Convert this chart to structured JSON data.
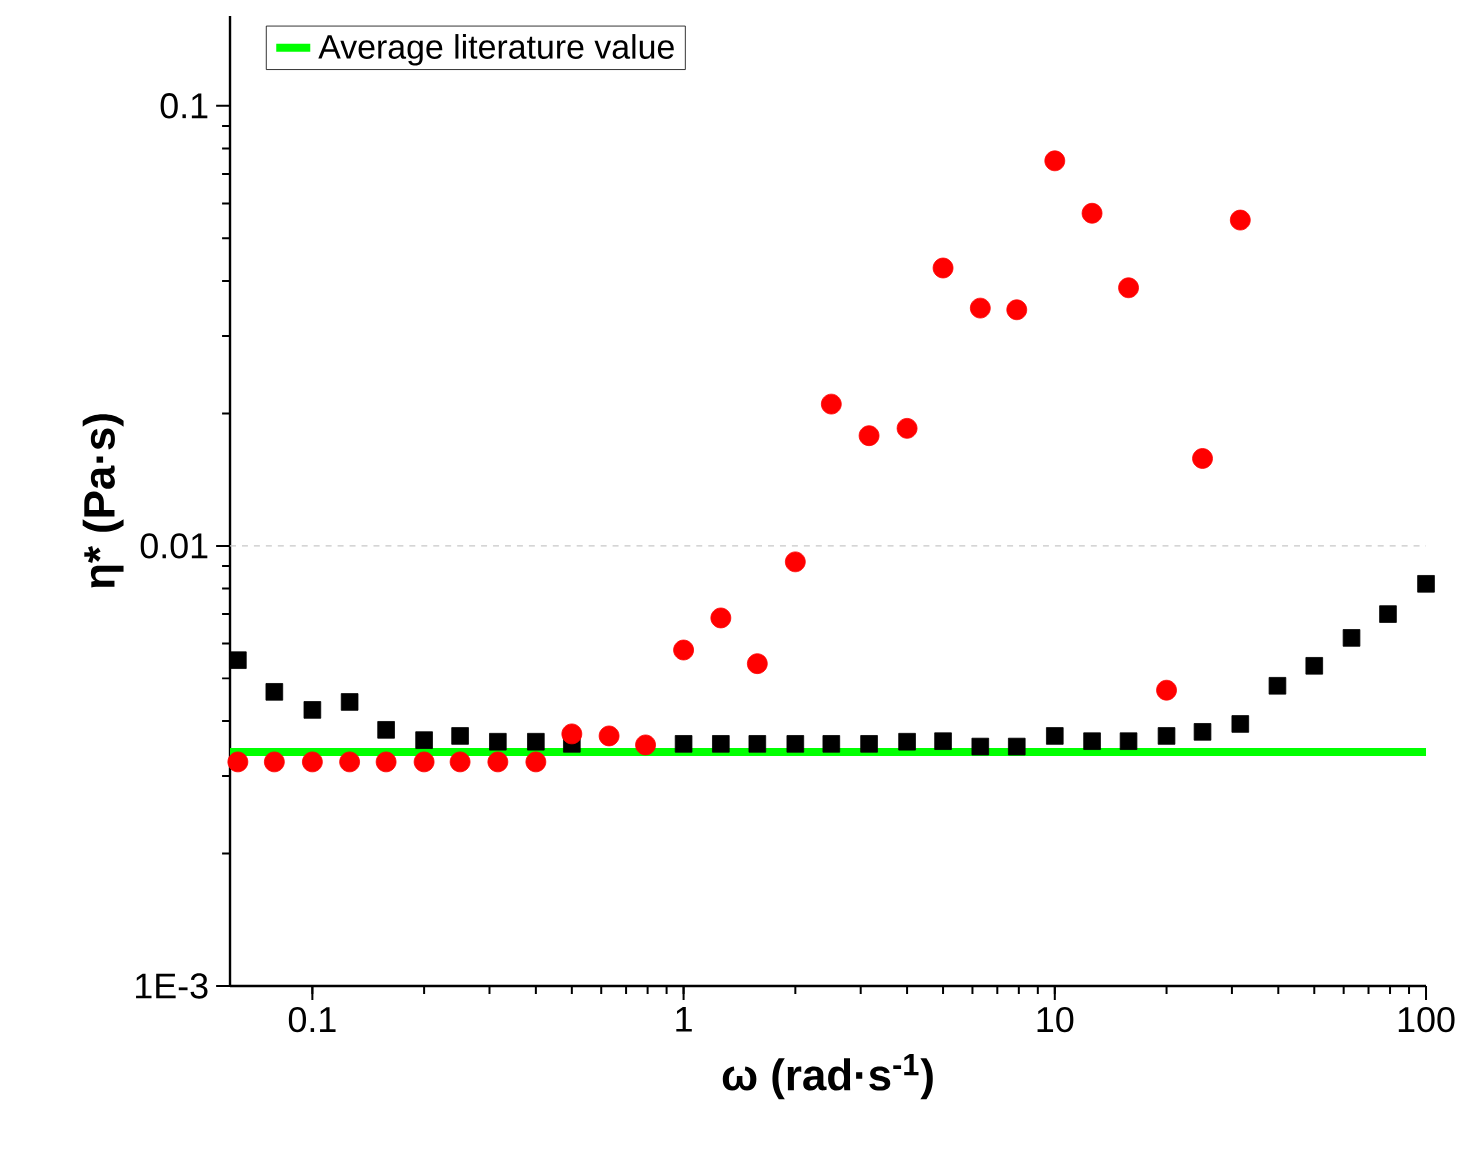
{
  "chart_data": {
    "type": "scatter",
    "xlabel": "ω (rad·s$^{-1}$)",
    "ylabel": "η* (Pa·s)",
    "log": "xy",
    "xlim": [
      0.06,
      100
    ],
    "ylim": [
      0.001,
      0.16
    ],
    "xticks": [
      0.1,
      1,
      10,
      100
    ],
    "yticks": [
      {
        "value": 0.001,
        "label": "1E-3"
      },
      0.01,
      0.1
    ],
    "legend": "top left",
    "grid": false,
    "ref_lines": [
      {
        "axis": "y",
        "value": 0.01,
        "color": "#c8c8c8",
        "line_style": "dashed"
      }
    ],
    "series": [
      {
        "color": "#000000",
        "marker": "square",
        "x": [
          0.063,
          0.079,
          0.1,
          0.126,
          0.158,
          0.2,
          0.25,
          0.316,
          0.4,
          0.5,
          0.63,
          0.79,
          1,
          1.26,
          1.58,
          2,
          2.5,
          3.16,
          4,
          5,
          6.3,
          7.9,
          10,
          12.6,
          15.8,
          20,
          25,
          31.6,
          39.8,
          50,
          63,
          79,
          100
        ],
        "values": [
          0.0055,
          0.00466,
          0.00424,
          0.00442,
          0.00382,
          0.00362,
          0.0037,
          0.00359,
          0.00359,
          0.00355,
          null,
          null,
          0.00355,
          0.00355,
          0.00355,
          0.00355,
          0.00355,
          0.00355,
          0.00359,
          0.0036,
          0.0035,
          0.0035,
          0.0037,
          0.0036,
          0.0036,
          0.0037,
          0.00378,
          0.00394,
          0.00481,
          0.00534,
          0.00618,
          0.007,
          0.0082
        ]
      },
      {
        "color": "#ff0000",
        "marker": "circle",
        "x": [
          0.063,
          0.079,
          0.1,
          0.126,
          0.158,
          0.2,
          0.25,
          0.316,
          0.4,
          0.5,
          0.63,
          0.79,
          1,
          1.26,
          1.58,
          2,
          2.5,
          3.16,
          4,
          5,
          6.3,
          7.9,
          10,
          12.6,
          15.8,
          20,
          25,
          31.6
        ],
        "values": [
          0.00323,
          0.00323,
          0.00323,
          0.00323,
          0.00323,
          0.00323,
          0.00323,
          0.00323,
          0.00323,
          0.00374,
          0.0037,
          0.00353,
          0.0058,
          0.00686,
          0.0054,
          0.0092,
          0.021,
          0.0178,
          0.0185,
          0.0428,
          0.0347,
          0.0344,
          0.075,
          0.057,
          0.0386,
          0.0047,
          0.0158,
          0.055
        ]
      },
      {
        "name": "Average literature value",
        "type": "line",
        "color": "#00ff00",
        "marker": "none",
        "line_style": "solid",
        "x": [
          0.06,
          100
        ],
        "values": [
          0.0034,
          0.0034
        ]
      }
    ]
  }
}
